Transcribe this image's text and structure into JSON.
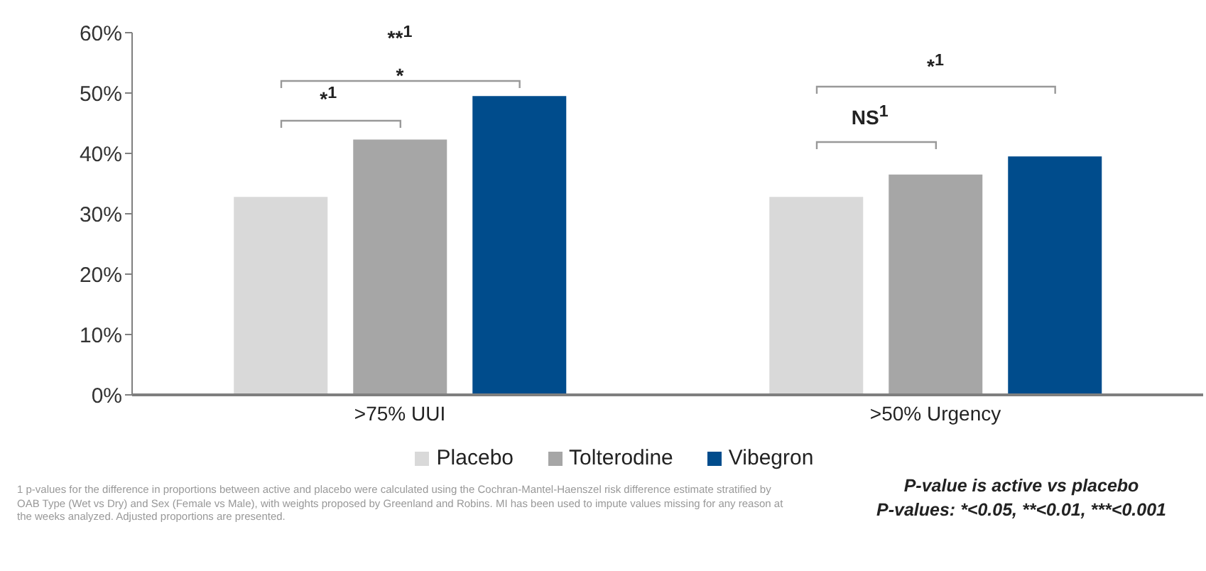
{
  "chart_data": {
    "type": "bar",
    "categories": [
      ">75% UUI",
      ">50% Urgency"
    ],
    "series": [
      {
        "name": "Placebo",
        "color": "#d9d9d9",
        "values": [
          32.8,
          32.8
        ]
      },
      {
        "name": "Tolterodine",
        "color": "#a6a6a6",
        "values": [
          42.3,
          36.5
        ]
      },
      {
        "name": "Vibegron",
        "color": "#004c8c",
        "values": [
          49.5,
          39.5
        ]
      }
    ],
    "ylim": [
      0,
      60
    ],
    "yticks": [
      {
        "value": 0,
        "label": "0%"
      },
      {
        "value": 10,
        "label": "10%"
      },
      {
        "value": 20,
        "label": "20%"
      },
      {
        "value": 30,
        "label": "30%"
      },
      {
        "value": 40,
        "label": "40%"
      },
      {
        "value": 50,
        "label": "50%"
      },
      {
        "value": 60,
        "label": "60%"
      }
    ],
    "grid": false,
    "legend": "bottom",
    "annotations": [
      "*$^{1}$",
      "*",
      "**$^{1}$",
      "NS$^{1}$",
      "*$^{1}$",
      "P-value is active vs placebo",
      "P-values: *<0.05, **<0.01, ***<0.001",
      "1 p-values for the difference in proportions between active and placebo were calculated using the Cochran-Mantel-Haenszel risk difference estimate stratified by OAB Type (Wet vs Dry) and Sex (Female vs Male), with weights proposed by Greenland and Robins. MI has been used to impute values missing for any reason at the weeks analyzed. Adjusted proportions are presented."
    ]
  }
}
